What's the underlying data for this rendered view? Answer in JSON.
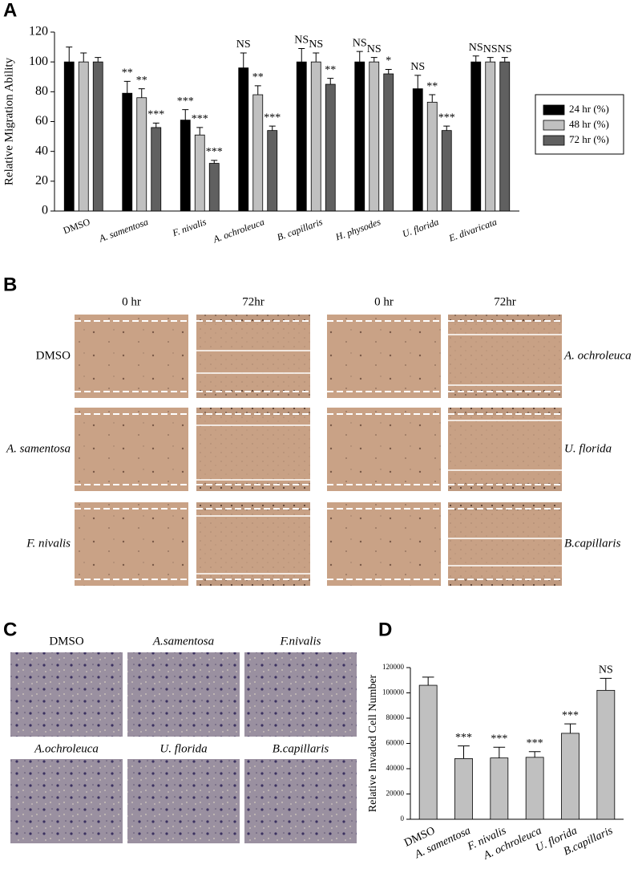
{
  "panel_labels": [
    "A",
    "B",
    "C",
    "D"
  ],
  "scratch": {
    "time_headers": [
      "0 hr",
      "72hr",
      "0 hr",
      "72hr"
    ],
    "left_labels": [
      "DMSO",
      "A. samentosa",
      "F. nivalis"
    ],
    "right_labels": [
      "A. ochroleuca",
      "U. florida",
      "B.capillaris"
    ]
  },
  "transwell": {
    "labels": [
      "DMSO",
      "A.samentosa",
      "F.nivalis",
      "A.ochroleuca",
      "U. florida",
      "B.capillaris"
    ]
  },
  "chart_data": [
    {
      "type": "bar",
      "y_label": "Relative Migration  Ability",
      "categories": [
        "DMSO",
        "A. samentosa",
        "F. nivalis",
        "A. ochroleuca",
        "B. capillaris",
        "H. physodes",
        "U. florida",
        "E. divaricata"
      ],
      "series": [
        {
          "name": "24 hr (%)",
          "color": "#000000",
          "values": [
            100,
            79,
            61,
            96,
            100,
            100,
            82,
            100
          ],
          "errors": [
            10,
            8,
            7,
            10,
            9,
            7,
            9,
            4
          ],
          "annotations": [
            null,
            "**",
            "***",
            "NS",
            "NS",
            "NS",
            "NS",
            "NS"
          ]
        },
        {
          "name": "48 hr (%)",
          "color": "#c0c0c0",
          "values": [
            100,
            76,
            51,
            78,
            100,
            100,
            73,
            100
          ],
          "errors": [
            6,
            6,
            5,
            6,
            6,
            3,
            5,
            3
          ],
          "annotations": [
            null,
            "**",
            "***",
            "**",
            "NS",
            "NS",
            "**",
            "NS"
          ]
        },
        {
          "name": "72 hr (%)",
          "color": "#606060",
          "values": [
            100,
            56,
            32,
            54,
            85,
            92,
            54,
            100
          ],
          "errors": [
            3,
            3,
            2,
            3,
            4,
            3,
            3,
            3
          ],
          "annotations": [
            null,
            "***",
            "***",
            "***",
            "**",
            "*",
            "***",
            "NS"
          ]
        }
      ],
      "ylim": [
        0,
        120
      ],
      "yticks": [
        0,
        20,
        40,
        60,
        80,
        100,
        120
      ],
      "legend": "right"
    },
    {
      "type": "bar",
      "y_label": "Relative Invaded Cell Number",
      "categories": [
        "DMSO",
        "A. samentosa",
        "F. nivalis",
        "A. ochroleuca",
        "U. florida",
        "B.capillaris"
      ],
      "values": [
        106000,
        48000,
        48500,
        49000,
        68000,
        102000
      ],
      "errors": [
        6500,
        10000,
        8500,
        4500,
        7500,
        9500
      ],
      "annotations": [
        null,
        "***",
        "***",
        "***",
        "***",
        "NS"
      ],
      "color": "#c0c0c0",
      "ylim": [
        0,
        120000
      ],
      "yticks": [
        0,
        20000,
        40000,
        60000,
        80000,
        100000,
        120000
      ]
    }
  ]
}
